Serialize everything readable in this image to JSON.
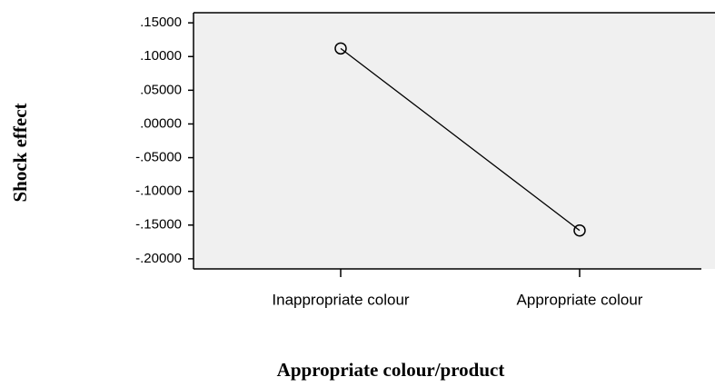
{
  "chart_data": {
    "type": "line",
    "x_label": "Appropriate colour/product",
    "y_label": "Shock effect",
    "categories": [
      "Inappropriate colour",
      "Appropriate colour"
    ],
    "series": [
      {
        "color": "#000000",
        "values": [
          0.112,
          -0.158
        ]
      }
    ],
    "ylim": [
      -0.215,
      0.165
    ],
    "yticks": [
      {
        "value": 0.15,
        "label": ".15000"
      },
      {
        "value": 0.1,
        "label": ".10000"
      },
      {
        "value": 0.05,
        "label": ".05000"
      },
      {
        "value": 0,
        "label": ".00000"
      },
      {
        "value": -0.05,
        "label": "-.05000"
      },
      {
        "value": -0.1,
        "label": "-.10000"
      },
      {
        "value": -0.15,
        "label": "-.15000"
      },
      {
        "value": -0.2,
        "label": "-.20000"
      }
    ]
  }
}
